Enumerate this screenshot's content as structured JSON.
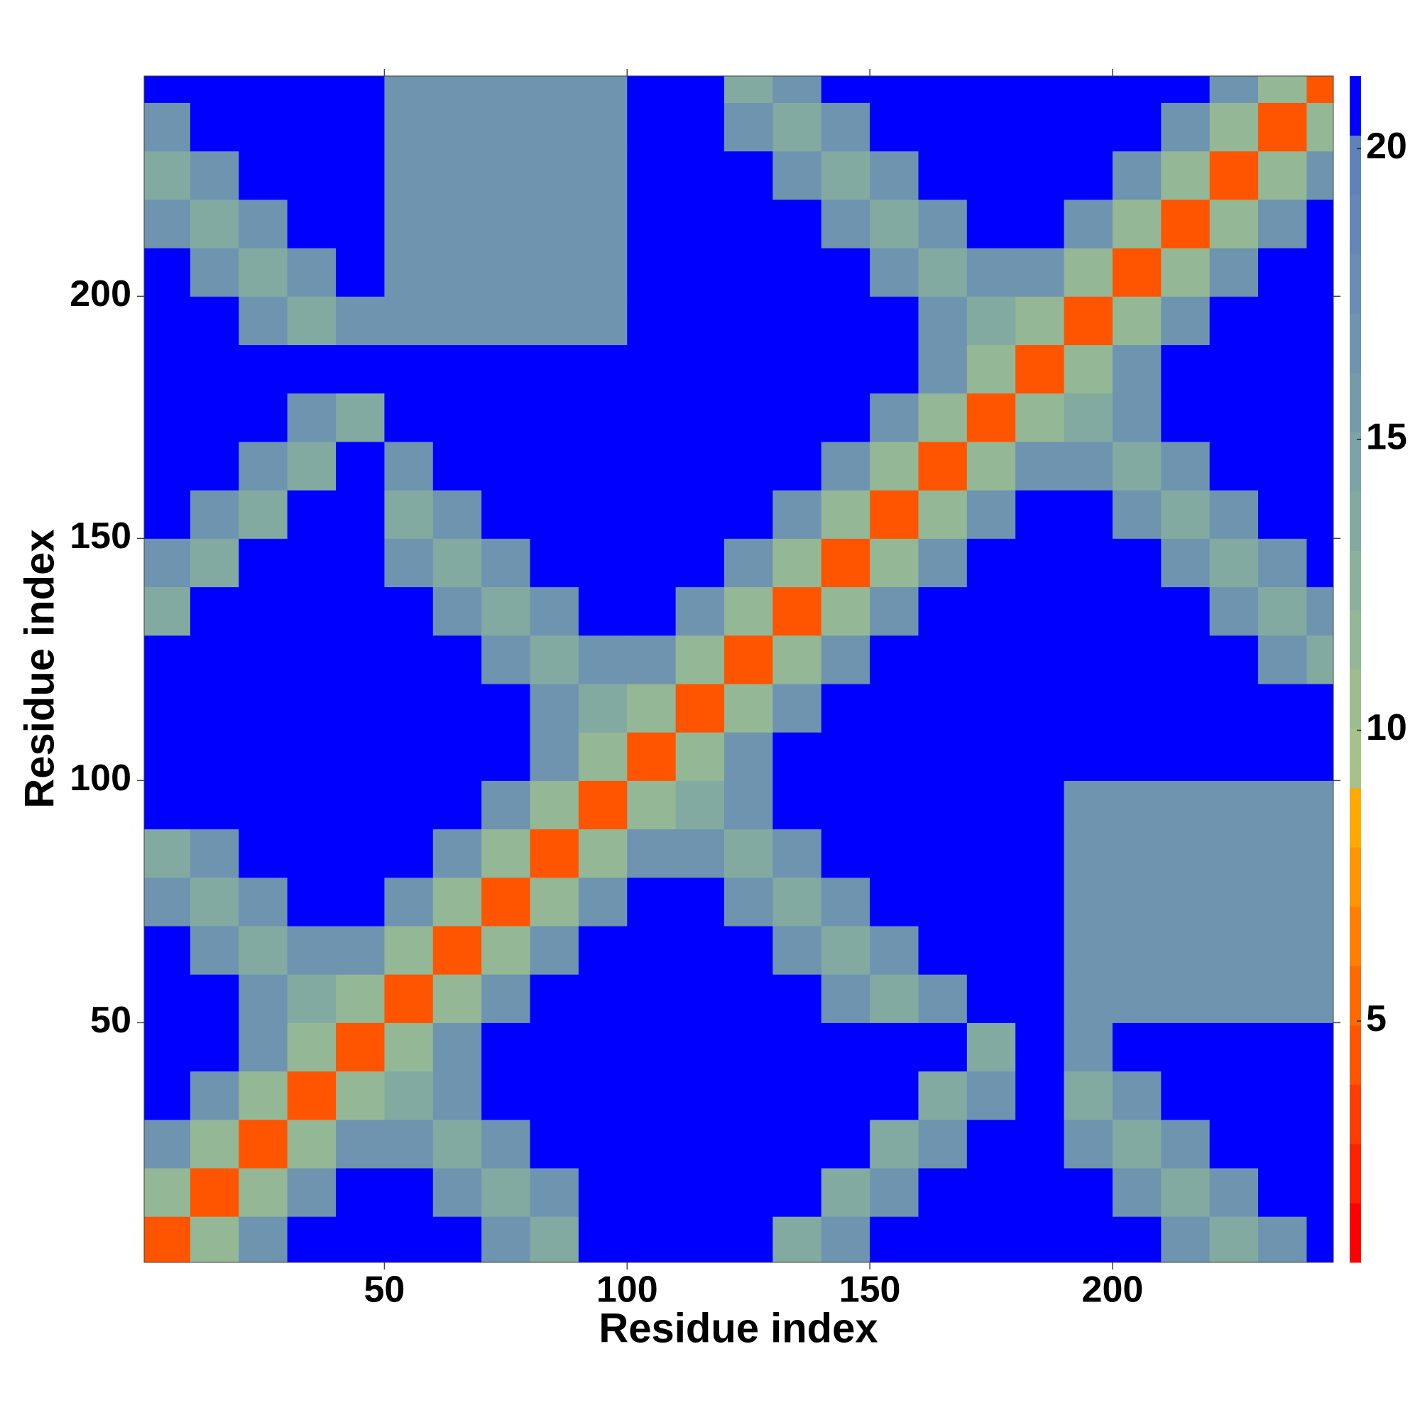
{
  "chart_data": {
    "type": "heatmap",
    "x_label": "Residue index",
    "y_label": "Residue index",
    "x": [
      5,
      15,
      25,
      35,
      45,
      55,
      65,
      75,
      85,
      95,
      105,
      115,
      125,
      135,
      145,
      155,
      165,
      175,
      185,
      195,
      205,
      215,
      225,
      235,
      245
    ],
    "y": [
      5,
      15,
      25,
      35,
      45,
      55,
      65,
      75,
      85,
      95,
      105,
      115,
      125,
      135,
      145,
      155,
      165,
      175,
      185,
      195,
      205,
      215,
      225,
      235,
      245
    ],
    "z": [
      [
        4,
        12,
        17,
        21,
        21,
        21,
        21,
        17,
        14,
        21,
        21,
        21,
        21,
        14,
        17,
        21,
        21,
        21,
        21,
        21,
        21,
        17,
        14,
        17,
        21
      ],
      [
        12,
        4,
        12,
        17,
        21,
        21,
        17,
        14,
        17,
        21,
        21,
        21,
        21,
        21,
        14,
        17,
        21,
        21,
        21,
        21,
        17,
        14,
        17,
        21,
        21
      ],
      [
        17,
        12,
        4,
        12,
        17,
        17,
        14,
        17,
        21,
        21,
        21,
        21,
        21,
        21,
        21,
        14,
        17,
        21,
        21,
        17,
        14,
        17,
        21,
        21,
        21
      ],
      [
        21,
        17,
        12,
        4,
        12,
        14,
        17,
        21,
        21,
        21,
        21,
        21,
        21,
        21,
        21,
        21,
        14,
        17,
        21,
        14,
        17,
        21,
        21,
        21,
        21
      ],
      [
        21,
        21,
        17,
        12,
        4,
        12,
        17,
        21,
        21,
        21,
        21,
        21,
        21,
        21,
        21,
        21,
        21,
        14,
        21,
        17,
        21,
        21,
        21,
        21,
        21
      ],
      [
        21,
        21,
        17,
        14,
        12,
        4,
        12,
        17,
        21,
        21,
        21,
        21,
        21,
        21,
        17,
        14,
        17,
        21,
        21,
        17,
        17,
        17,
        17,
        17,
        17
      ],
      [
        21,
        17,
        14,
        17,
        17,
        12,
        4,
        12,
        17,
        21,
        21,
        21,
        21,
        17,
        14,
        17,
        21,
        21,
        21,
        17,
        17,
        17,
        17,
        17,
        17
      ],
      [
        17,
        14,
        17,
        21,
        21,
        17,
        12,
        4,
        12,
        17,
        21,
        21,
        17,
        14,
        17,
        21,
        21,
        21,
        21,
        17,
        17,
        17,
        17,
        17,
        17
      ],
      [
        14,
        17,
        21,
        21,
        21,
        21,
        17,
        12,
        4,
        12,
        17,
        17,
        14,
        17,
        21,
        21,
        21,
        21,
        21,
        17,
        17,
        17,
        17,
        17,
        17
      ],
      [
        21,
        21,
        21,
        21,
        21,
        21,
        21,
        17,
        12,
        4,
        12,
        14,
        17,
        21,
        21,
        21,
        21,
        21,
        21,
        17,
        17,
        17,
        17,
        17,
        17
      ],
      [
        21,
        21,
        21,
        21,
        21,
        21,
        21,
        21,
        17,
        12,
        4,
        12,
        17,
        21,
        21,
        21,
        21,
        21,
        21,
        21,
        21,
        21,
        21,
        21,
        21
      ],
      [
        21,
        21,
        21,
        21,
        21,
        21,
        21,
        21,
        17,
        14,
        12,
        4,
        12,
        17,
        21,
        21,
        21,
        21,
        21,
        21,
        21,
        21,
        21,
        21,
        21
      ],
      [
        21,
        21,
        21,
        21,
        21,
        21,
        21,
        17,
        14,
        17,
        17,
        12,
        4,
        12,
        17,
        21,
        21,
        21,
        21,
        21,
        21,
        21,
        21,
        17,
        14
      ],
      [
        14,
        21,
        21,
        21,
        21,
        21,
        17,
        14,
        17,
        21,
        21,
        17,
        12,
        4,
        12,
        17,
        21,
        21,
        21,
        21,
        21,
        21,
        17,
        14,
        17
      ],
      [
        17,
        14,
        21,
        21,
        21,
        17,
        14,
        17,
        21,
        21,
        21,
        21,
        17,
        12,
        4,
        12,
        17,
        21,
        21,
        21,
        21,
        17,
        14,
        17,
        21
      ],
      [
        21,
        17,
        14,
        21,
        21,
        14,
        17,
        21,
        21,
        21,
        21,
        21,
        21,
        17,
        12,
        4,
        12,
        17,
        21,
        21,
        17,
        14,
        17,
        21,
        21
      ],
      [
        21,
        21,
        17,
        14,
        21,
        17,
        21,
        21,
        21,
        21,
        21,
        21,
        21,
        21,
        17,
        12,
        4,
        12,
        17,
        17,
        14,
        17,
        21,
        21,
        21
      ],
      [
        21,
        21,
        21,
        17,
        14,
        21,
        21,
        21,
        21,
        21,
        21,
        21,
        21,
        21,
        21,
        17,
        12,
        4,
        12,
        14,
        17,
        21,
        21,
        21,
        21
      ],
      [
        21,
        21,
        21,
        21,
        21,
        21,
        21,
        21,
        21,
        21,
        21,
        21,
        21,
        21,
        21,
        21,
        17,
        12,
        4,
        12,
        17,
        21,
        21,
        21,
        21
      ],
      [
        21,
        21,
        17,
        14,
        17,
        17,
        17,
        17,
        17,
        17,
        21,
        21,
        21,
        21,
        21,
        21,
        17,
        14,
        12,
        4,
        12,
        17,
        21,
        21,
        21
      ],
      [
        21,
        17,
        14,
        17,
        21,
        17,
        17,
        17,
        17,
        17,
        21,
        21,
        21,
        21,
        21,
        17,
        14,
        17,
        17,
        12,
        4,
        12,
        17,
        21,
        21
      ],
      [
        17,
        14,
        17,
        21,
        21,
        17,
        17,
        17,
        17,
        17,
        21,
        21,
        21,
        21,
        17,
        14,
        17,
        21,
        21,
        17,
        12,
        4,
        12,
        17,
        21
      ],
      [
        14,
        17,
        21,
        21,
        21,
        17,
        17,
        17,
        17,
        17,
        21,
        21,
        21,
        17,
        14,
        17,
        21,
        21,
        21,
        21,
        17,
        12,
        4,
        12,
        17
      ],
      [
        17,
        21,
        21,
        21,
        21,
        17,
        17,
        17,
        17,
        17,
        21,
        21,
        17,
        14,
        17,
        21,
        21,
        21,
        21,
        21,
        21,
        17,
        12,
        4,
        12
      ],
      [
        21,
        21,
        21,
        21,
        21,
        17,
        17,
        17,
        17,
        17,
        21,
        21,
        14,
        17,
        21,
        21,
        21,
        21,
        21,
        21,
        21,
        21,
        17,
        12,
        4
      ]
    ],
    "xlim": [
      0.5,
      245.5
    ],
    "ylim": [
      0.5,
      245.5
    ],
    "xticks": [
      50,
      100,
      150,
      200
    ],
    "yticks": [
      50,
      100,
      150,
      200
    ],
    "zlim": [
      0.85,
      21.25
    ],
    "zticks": [
      5,
      10,
      15,
      20
    ],
    "colorscale": [
      "#ff0000",
      "#ff2200",
      "#ff3d00",
      "#ff5500",
      "#ff6a00",
      "#ff8000",
      "#ff9500",
      "#ffaa00",
      "#a7c18b",
      "#9dbd90",
      "#94b795",
      "#8bb19b",
      "#83aaa1",
      "#7ca3a6",
      "#759bab",
      "#6f94b0",
      "#698db4",
      "#6487b8",
      "#6082bb",
      "#0000ff"
    ]
  }
}
